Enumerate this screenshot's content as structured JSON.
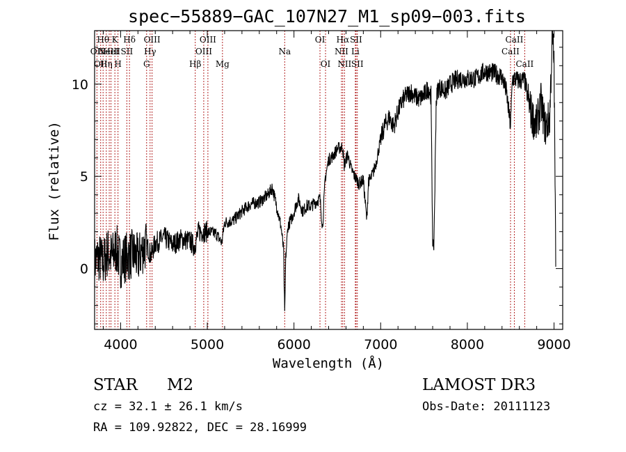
{
  "chart_data": {
    "type": "line",
    "title": "spec−55889−GAC_107N27_M1_sp09−003.fits",
    "xlabel": "Wavelength (Å)",
    "ylabel": "Flux (relative)",
    "xlim": [
      3700,
      9100
    ],
    "ylim": [
      -3.3,
      12.9
    ],
    "xticks": [
      4000,
      5000,
      6000,
      7000,
      8000,
      9000
    ],
    "xtick_labels": [
      "4000",
      "5000",
      "6000",
      "7000",
      "8000",
      "9000"
    ],
    "yticks": [
      0,
      5,
      10
    ],
    "ytick_labels": [
      "0",
      "5",
      "10"
    ],
    "series": [
      {
        "name": "flux",
        "x": [
          3700,
          3750,
          3800,
          3850,
          3900,
          3950,
          4000,
          4050,
          4100,
          4150,
          4200,
          4250,
          4300,
          4350,
          4400,
          4450,
          4500,
          4600,
          4700,
          4800,
          4850,
          4900,
          5000,
          5100,
          5167,
          5200,
          5300,
          5400,
          5500,
          5600,
          5700,
          5750,
          5800,
          5850,
          5880,
          5893,
          5905,
          5930,
          5980,
          6050,
          6100,
          6150,
          6200,
          6300,
          6330,
          6360,
          6400,
          6450,
          6500,
          6560,
          6580,
          6620,
          6660,
          6700,
          6750,
          6800,
          6840,
          6860,
          6880,
          6920,
          6950,
          7000,
          7050,
          7100,
          7150,
          7200,
          7250,
          7300,
          7350,
          7400,
          7450,
          7500,
          7550,
          7580,
          7600,
          7610,
          7620,
          7640,
          7660,
          7700,
          7750,
          7800,
          7900,
          8000,
          8100,
          8200,
          8300,
          8400,
          8450,
          8498,
          8520,
          8542,
          8580,
          8662,
          8700,
          8750,
          8800,
          8850,
          8900,
          8950,
          8980,
          9000,
          9020
        ],
        "y": [
          0.4,
          0.6,
          0.3,
          0.9,
          0.6,
          1.1,
          0.3,
          0.6,
          0.7,
          0.8,
          0.5,
          1.0,
          1.3,
          0.7,
          1.4,
          1.5,
          1.7,
          1.3,
          1.6,
          1.5,
          1.2,
          2.0,
          2.0,
          1.9,
          1.4,
          2.5,
          2.6,
          3.1,
          3.5,
          3.6,
          4.0,
          4.4,
          3.4,
          2.3,
          1.0,
          -2.6,
          0.6,
          2.3,
          2.8,
          3.8,
          3.1,
          3.4,
          3.4,
          3.8,
          2.2,
          4.9,
          5.9,
          6.1,
          6.5,
          6.6,
          5.6,
          6.2,
          5.4,
          5.0,
          4.6,
          4.8,
          2.6,
          4.8,
          4.8,
          5.3,
          5.8,
          7.0,
          7.8,
          8.2,
          7.7,
          8.5,
          9.1,
          9.4,
          9.6,
          9.3,
          9.2,
          9.4,
          9.8,
          9.4,
          1.7,
          0.6,
          2.8,
          9.0,
          9.8,
          9.8,
          9.6,
          10.0,
          10.3,
          10.3,
          10.3,
          10.7,
          10.6,
          10.4,
          9.6,
          7.7,
          10.3,
          10.3,
          10.2,
          10.2,
          9.2,
          8.2,
          7.8,
          9.0,
          7.6,
          8.2,
          12.7,
          11.2,
          0.1
        ]
      }
    ],
    "line_markers": [
      {
        "wavelength": 3727,
        "label": "OII",
        "row": 2
      },
      {
        "wavelength": 3770,
        "label": "OII",
        "row": 3
      },
      {
        "wavelength": 3798,
        "label": "Hθ",
        "row": 1
      },
      {
        "wavelength": 3835,
        "label": "Hη",
        "row": 3
      },
      {
        "wavelength": 3869,
        "label": "NeIII",
        "row": 2
      },
      {
        "wavelength": 3889,
        "label": "HeI",
        "row": 2
      },
      {
        "wavelength": 3934,
        "label": "K",
        "row": 1
      },
      {
        "wavelength": 3970,
        "label": "H",
        "row": 3
      },
      {
        "wavelength": 4072,
        "label": "SII",
        "row": 2
      },
      {
        "wavelength": 4102,
        "label": "Hδ",
        "row": 1
      },
      {
        "wavelength": 4300,
        "label": "G",
        "row": 3
      },
      {
        "wavelength": 4340,
        "label": "Hγ",
        "row": 2
      },
      {
        "wavelength": 4363,
        "label": "OIII",
        "row": 1
      },
      {
        "wavelength": 4861,
        "label": "Hβ",
        "row": 3
      },
      {
        "wavelength": 4959,
        "label": "OIII",
        "row": 2
      },
      {
        "wavelength": 5007,
        "label": "OIII",
        "row": 1
      },
      {
        "wavelength": 5175,
        "label": "Mg",
        "row": 3
      },
      {
        "wavelength": 5893,
        "label": "Na",
        "row": 2
      },
      {
        "wavelength": 6300,
        "label": "OI",
        "row": 1
      },
      {
        "wavelength": 6364,
        "label": "OI",
        "row": 3
      },
      {
        "wavelength": 6548,
        "label": "NII",
        "row": 2
      },
      {
        "wavelength": 6563,
        "label": "Hα",
        "row": 1
      },
      {
        "wavelength": 6583,
        "label": "NII",
        "row": 3
      },
      {
        "wavelength": 6708,
        "label": "Li",
        "row": 2
      },
      {
        "wavelength": 6716,
        "label": "SII",
        "row": 1
      },
      {
        "wavelength": 6731,
        "label": "SII",
        "row": 3
      },
      {
        "wavelength": 8498,
        "label": "CaII",
        "row": 2
      },
      {
        "wavelength": 8542,
        "label": "CaII",
        "row": 1
      },
      {
        "wavelength": 8662,
        "label": "CaII",
        "row": 3
      }
    ],
    "colors": {
      "spectrum": "#000000",
      "marker": "#b22222",
      "axes": "#000000"
    }
  },
  "info": {
    "class_label": "STAR",
    "subclass": "M2",
    "survey": "LAMOST DR3",
    "cz_line": "cz = 32.1 ± 26.1 km/s",
    "obs_date_line": "Obs-Date: 20111123",
    "coord_line": "RA = 109.92822, DEC =  28.16999"
  }
}
